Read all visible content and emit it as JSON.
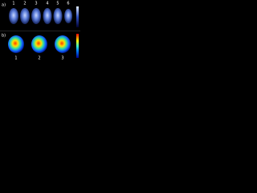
{
  "panels": [
    {
      "label": "a)",
      "numbers": [
        "1",
        "2",
        "3",
        "4",
        "5",
        "6"
      ]
    },
    {
      "label": "b)",
      "numbers": [
        "1",
        "2",
        "3"
      ]
    }
  ]
}
